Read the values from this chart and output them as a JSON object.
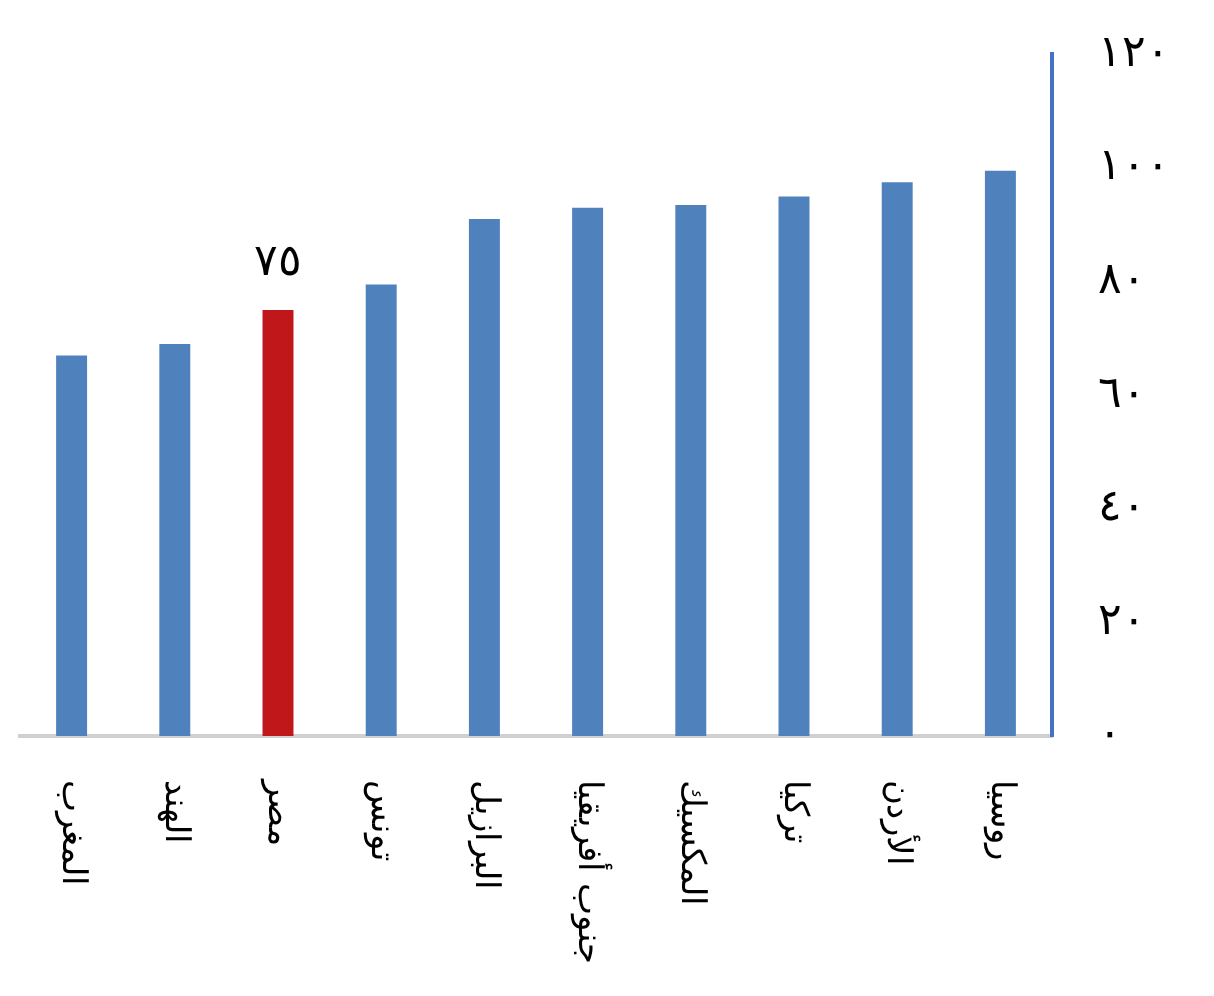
{
  "chart_data": {
    "type": "bar",
    "categories": [
      "المغرب",
      "الهند",
      "مصر",
      "تونس",
      "البرازيل",
      "جنوب أفريقيا",
      "المكسيك",
      "تركيا",
      "الأردن",
      "روسيا"
    ],
    "values": [
      67,
      69,
      75,
      79.5,
      91,
      93,
      93.5,
      95,
      97.5,
      99.5
    ],
    "colors": [
      "#4f81bd",
      "#4f81bd",
      "#c0181a",
      "#4f81bd",
      "#4f81bd",
      "#4f81bd",
      "#4f81bd",
      "#4f81bd",
      "#4f81bd",
      "#4f81bd"
    ],
    "value_labels": [
      null,
      null,
      "٧٥",
      null,
      null,
      null,
      null,
      null,
      null,
      null
    ],
    "ylim": [
      0,
      120
    ],
    "yticks": [
      {
        "value": 0,
        "label": "٠"
      },
      {
        "value": 20,
        "label": "٢٠"
      },
      {
        "value": 40,
        "label": "٤٠"
      },
      {
        "value": 60,
        "label": "٦٠"
      },
      {
        "value": 80,
        "label": "٨٠"
      },
      {
        "value": 100,
        "label": "١٠٠"
      },
      {
        "value": 120,
        "label": "١٢٠"
      }
    ],
    "grid": false,
    "legend": false
  }
}
